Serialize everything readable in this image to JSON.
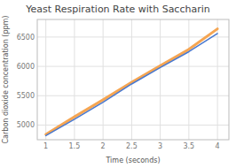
{
  "chart_data": {
    "type": "line",
    "title": "Yeast Respiration Rate with Saccharin",
    "x_label": "Time (seconds)",
    "y_label": "Carbon dioxide concentration (ppm)",
    "x": [
      1.0,
      1.5,
      2.0,
      2.5,
      3.0,
      3.5,
      4.0
    ],
    "series": [
      {
        "color": "#f5a552",
        "values": [
          4840,
          5140,
          5430,
          5730,
          6010,
          6290,
          6640
        ]
      },
      {
        "color": "#4878cf",
        "values": [
          4820,
          5100,
          5390,
          5700,
          5980,
          6250,
          6560
        ]
      }
    ],
    "xlim": [
      0.85,
      4.2
    ],
    "ylim": [
      4750,
      6800
    ],
    "xticks": [
      1,
      1.5,
      2,
      2.5,
      3,
      3.5,
      4
    ],
    "yticks": [
      5000,
      5500,
      6000,
      6500
    ],
    "grid": true
  }
}
